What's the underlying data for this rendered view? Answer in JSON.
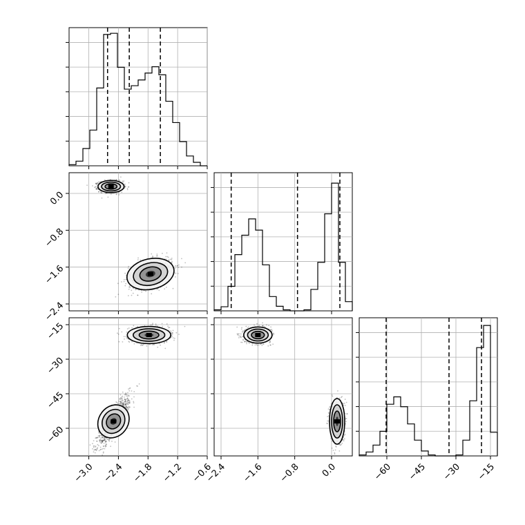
{
  "chart_data": {
    "type": "corner",
    "parameters": 3,
    "grid": true,
    "colors": {
      "hist": "#000000",
      "grid": "#b0b0b0",
      "samples": "#000000",
      "contour": "#000000"
    },
    "hist_ticks": {
      "x": [
        {
          "val": -3.0,
          "label": "−3.0"
        },
        {
          "val": -2.4,
          "label": "−2.4"
        },
        {
          "val": -1.8,
          "label": "−1.8"
        },
        {
          "val": -1.2,
          "label": "−1.2"
        },
        {
          "val": -0.6,
          "label": "−0.6"
        }
      ],
      "y": [
        {
          "val": -2.4,
          "label": "−2.4"
        },
        {
          "val": -1.6,
          "label": "−1.6"
        },
        {
          "val": -0.8,
          "label": "−0.8"
        },
        {
          "val": 0.0,
          "label": "0.0"
        }
      ],
      "z": [
        {
          "val": -60,
          "label": "−60"
        },
        {
          "val": -45,
          "label": "−45"
        },
        {
          "val": -30,
          "label": "−30"
        },
        {
          "val": -15,
          "label": "−15"
        }
      ]
    },
    "ranges": {
      "x": [
        -3.4,
        -0.6
      ],
      "y": [
        -2.55,
        0.45
      ],
      "z": [
        -72,
        -12
      ]
    },
    "histograms": [
      {
        "param": "x",
        "edges": [
          -3.4,
          -3.26,
          -3.12,
          -2.98,
          -2.84,
          -2.7,
          -2.56,
          -2.42,
          -2.28,
          -2.14,
          -2.0,
          -1.86,
          -1.72,
          -1.58,
          -1.44,
          -1.3,
          -1.16,
          -1.02,
          -0.88,
          -0.74
        ],
        "counts": [
          2,
          8,
          30,
          62,
          135,
          228,
          230,
          171,
          133,
          139,
          149,
          161,
          172,
          158,
          112,
          75,
          42,
          17,
          6
        ],
        "max": 235,
        "quantiles": [
          -2.62,
          -2.18,
          -1.55
        ]
      },
      {
        "param": "y",
        "edges": [
          -2.55,
          -2.4,
          -2.25,
          -2.1,
          -1.95,
          -1.8,
          -1.65,
          -1.5,
          -1.35,
          -1.2,
          -1.05,
          -0.9,
          -0.75,
          -0.6,
          -0.45,
          -0.3,
          -0.15,
          0.0,
          0.15,
          0.3,
          0.45
        ],
        "counts": [
          2,
          8,
          48,
          110,
          148,
          180,
          158,
          90,
          28,
          9,
          2,
          0,
          0,
          2,
          42,
          95,
          190,
          250,
          95,
          18
        ],
        "max": 265,
        "quantiles": [
          -2.18,
          -0.74,
          0.18
        ]
      },
      {
        "param": "z",
        "edges": [
          -72,
          -69,
          -66,
          -63,
          -60,
          -57,
          -54,
          -51,
          -48,
          -45,
          -42,
          -39,
          -36,
          -33,
          -30,
          -27,
          -24,
          -21,
          -18,
          -15,
          -12
        ],
        "counts": [
          2,
          8,
          22,
          50,
          105,
          120,
          100,
          65,
          32,
          10,
          2,
          0,
          0,
          0,
          2,
          32,
          112,
          220,
          265,
          48
        ],
        "max": 275,
        "quantiles": [
          -60.3,
          -33.0,
          -18.9
        ]
      }
    ],
    "scatter_panels": [
      {
        "x_param": "x",
        "y_param": "y",
        "clusters": [
          {
            "mx": -2.55,
            "my": 0.15,
            "sx": 0.12,
            "sy": 0.06,
            "rho": 0.0,
            "n": 1000
          },
          {
            "mx": -1.75,
            "my": -1.75,
            "sx": 0.22,
            "sy": 0.16,
            "rho": 0.35,
            "n": 1000
          }
        ]
      },
      {
        "x_param": "x",
        "y_param": "z",
        "clusters": [
          {
            "mx": -1.78,
            "my": -19.5,
            "sx": 0.2,
            "sy": 1.7,
            "rho": 0.0,
            "n": 1000
          },
          {
            "mx": -2.5,
            "my": -57,
            "sx": 0.16,
            "sy": 5.5,
            "rho": 0.85,
            "n": 1000
          }
        ]
      },
      {
        "x_param": "y",
        "y_param": "z",
        "clusters": [
          {
            "mx": -1.6,
            "my": -19.5,
            "sx": 0.14,
            "sy": 1.6,
            "rho": 0.0,
            "n": 1000
          },
          {
            "mx": 0.12,
            "my": -57,
            "sx": 0.075,
            "sy": 4.5,
            "rho": 0.0,
            "n": 1000
          }
        ]
      }
    ]
  }
}
